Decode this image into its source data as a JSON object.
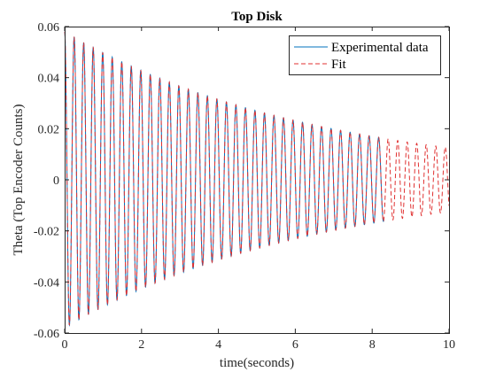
{
  "chart_data": {
    "type": "line",
    "title": "Top Disk",
    "xlabel": "time(seconds)",
    "ylabel": "Theta (Top Encoder Counts)",
    "xlim": [
      0,
      10
    ],
    "ylim": [
      -0.06,
      0.06
    ],
    "x_ticks": [
      0,
      2,
      4,
      6,
      8,
      10
    ],
    "y_ticks": [
      -0.06,
      -0.04,
      -0.02,
      0,
      0.02,
      0.04,
      0.06
    ],
    "x_tick_labels": [
      "0",
      "2",
      "4",
      "6",
      "8",
      "10"
    ],
    "y_tick_labels": [
      "-0.06",
      "-0.04",
      "-0.02",
      "0",
      "0.02",
      "0.04",
      "0.06"
    ],
    "grid": false,
    "legend_position": "top-right",
    "series": [
      {
        "name": "Experimental data",
        "color": "#0072BD",
        "style": "solid",
        "model": "damped-cosine",
        "amplitude": 0.058,
        "decay_rate": 0.153,
        "frequency_hz": 4.04,
        "x_range": [
          0,
          8.3
        ]
      },
      {
        "name": "Fit",
        "color": "#E03030",
        "style": "dashed",
        "model": "damped-cosine",
        "amplitude": 0.058,
        "decay_rate": 0.153,
        "frequency_hz": 4.04,
        "x_range": [
          0,
          10
        ]
      }
    ]
  }
}
